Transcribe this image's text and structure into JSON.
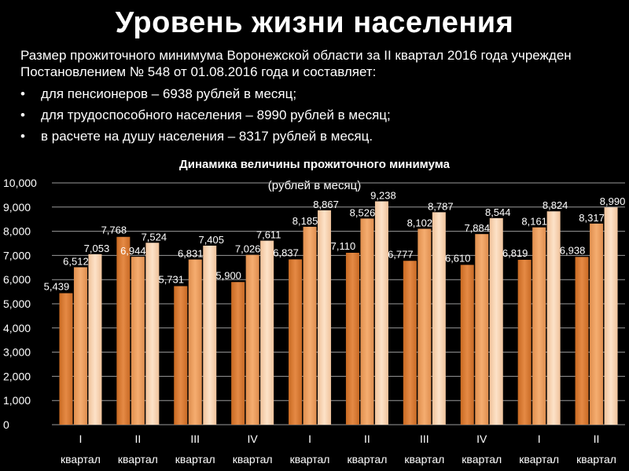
{
  "header": {
    "title": "Уровень жизни населения",
    "intro": "Размер прожиточного минимума Воронежской области за II квартал 2016 года учрежден Постановлением № 548 от 01.08.2016 года и составляет:",
    "bullets": [
      "для пенсионеров – 6938 рублей в месяц;",
      "для трудоспособного населения – 8990 рублей в месяц;",
      "в расчете на душу населения – 8317 рублей в месяц."
    ]
  },
  "chart_data": {
    "type": "bar",
    "title": "Динамика величины прожиточного минимума",
    "subtitle": "(рублей в месяц)",
    "xlabel": "",
    "ylabel": "",
    "ylim": [
      0,
      10000
    ],
    "yticks": [
      "0",
      "1,000",
      "2,000",
      "3,000",
      "4,000",
      "5,000",
      "6,000",
      "7,000",
      "8,000",
      "9,000",
      "10,000"
    ],
    "grid": true,
    "legend": "none",
    "categories": [
      [
        "I",
        "квартал"
      ],
      [
        "II",
        "квартал"
      ],
      [
        "III",
        "квартал"
      ],
      [
        "IV",
        "квартал"
      ],
      [
        "I",
        "квартал"
      ],
      [
        "II",
        "квартал"
      ],
      [
        "III",
        "квартал"
      ],
      [
        "IV",
        "квартал"
      ],
      [
        "I",
        "квартал"
      ],
      [
        "II",
        "квартал"
      ]
    ],
    "series": [
      {
        "color": "#e0873f",
        "values": [
          5439,
          7768,
          5731,
          5900,
          6837,
          7110,
          6777,
          6610,
          6819,
          6938
        ],
        "labels": [
          "5,439",
          "7,768",
          "5,731",
          "5,900",
          "6,837",
          "7,110",
          "6,777",
          "6,610",
          "6,819",
          "6,938"
        ]
      },
      {
        "color": "#f2a86a",
        "values": [
          6512,
          6944,
          6831,
          7026,
          8185,
          8526,
          8102,
          7884,
          8161,
          8317
        ],
        "labels": [
          "6,512",
          "6,944",
          "6,831",
          "7,026",
          "8,185",
          "8,526",
          "8,102",
          "7,884",
          "8,161",
          "8,317"
        ]
      },
      {
        "color": "#fbd7b6",
        "values": [
          7053,
          7524,
          7405,
          7611,
          8867,
          9238,
          8787,
          8544,
          8824,
          8990
        ],
        "labels": [
          "7,053",
          "7,524",
          "7,405",
          "7,611",
          "8,867",
          "9,238",
          "8,787",
          "8,544",
          "8,824",
          "8,990"
        ]
      }
    ]
  }
}
